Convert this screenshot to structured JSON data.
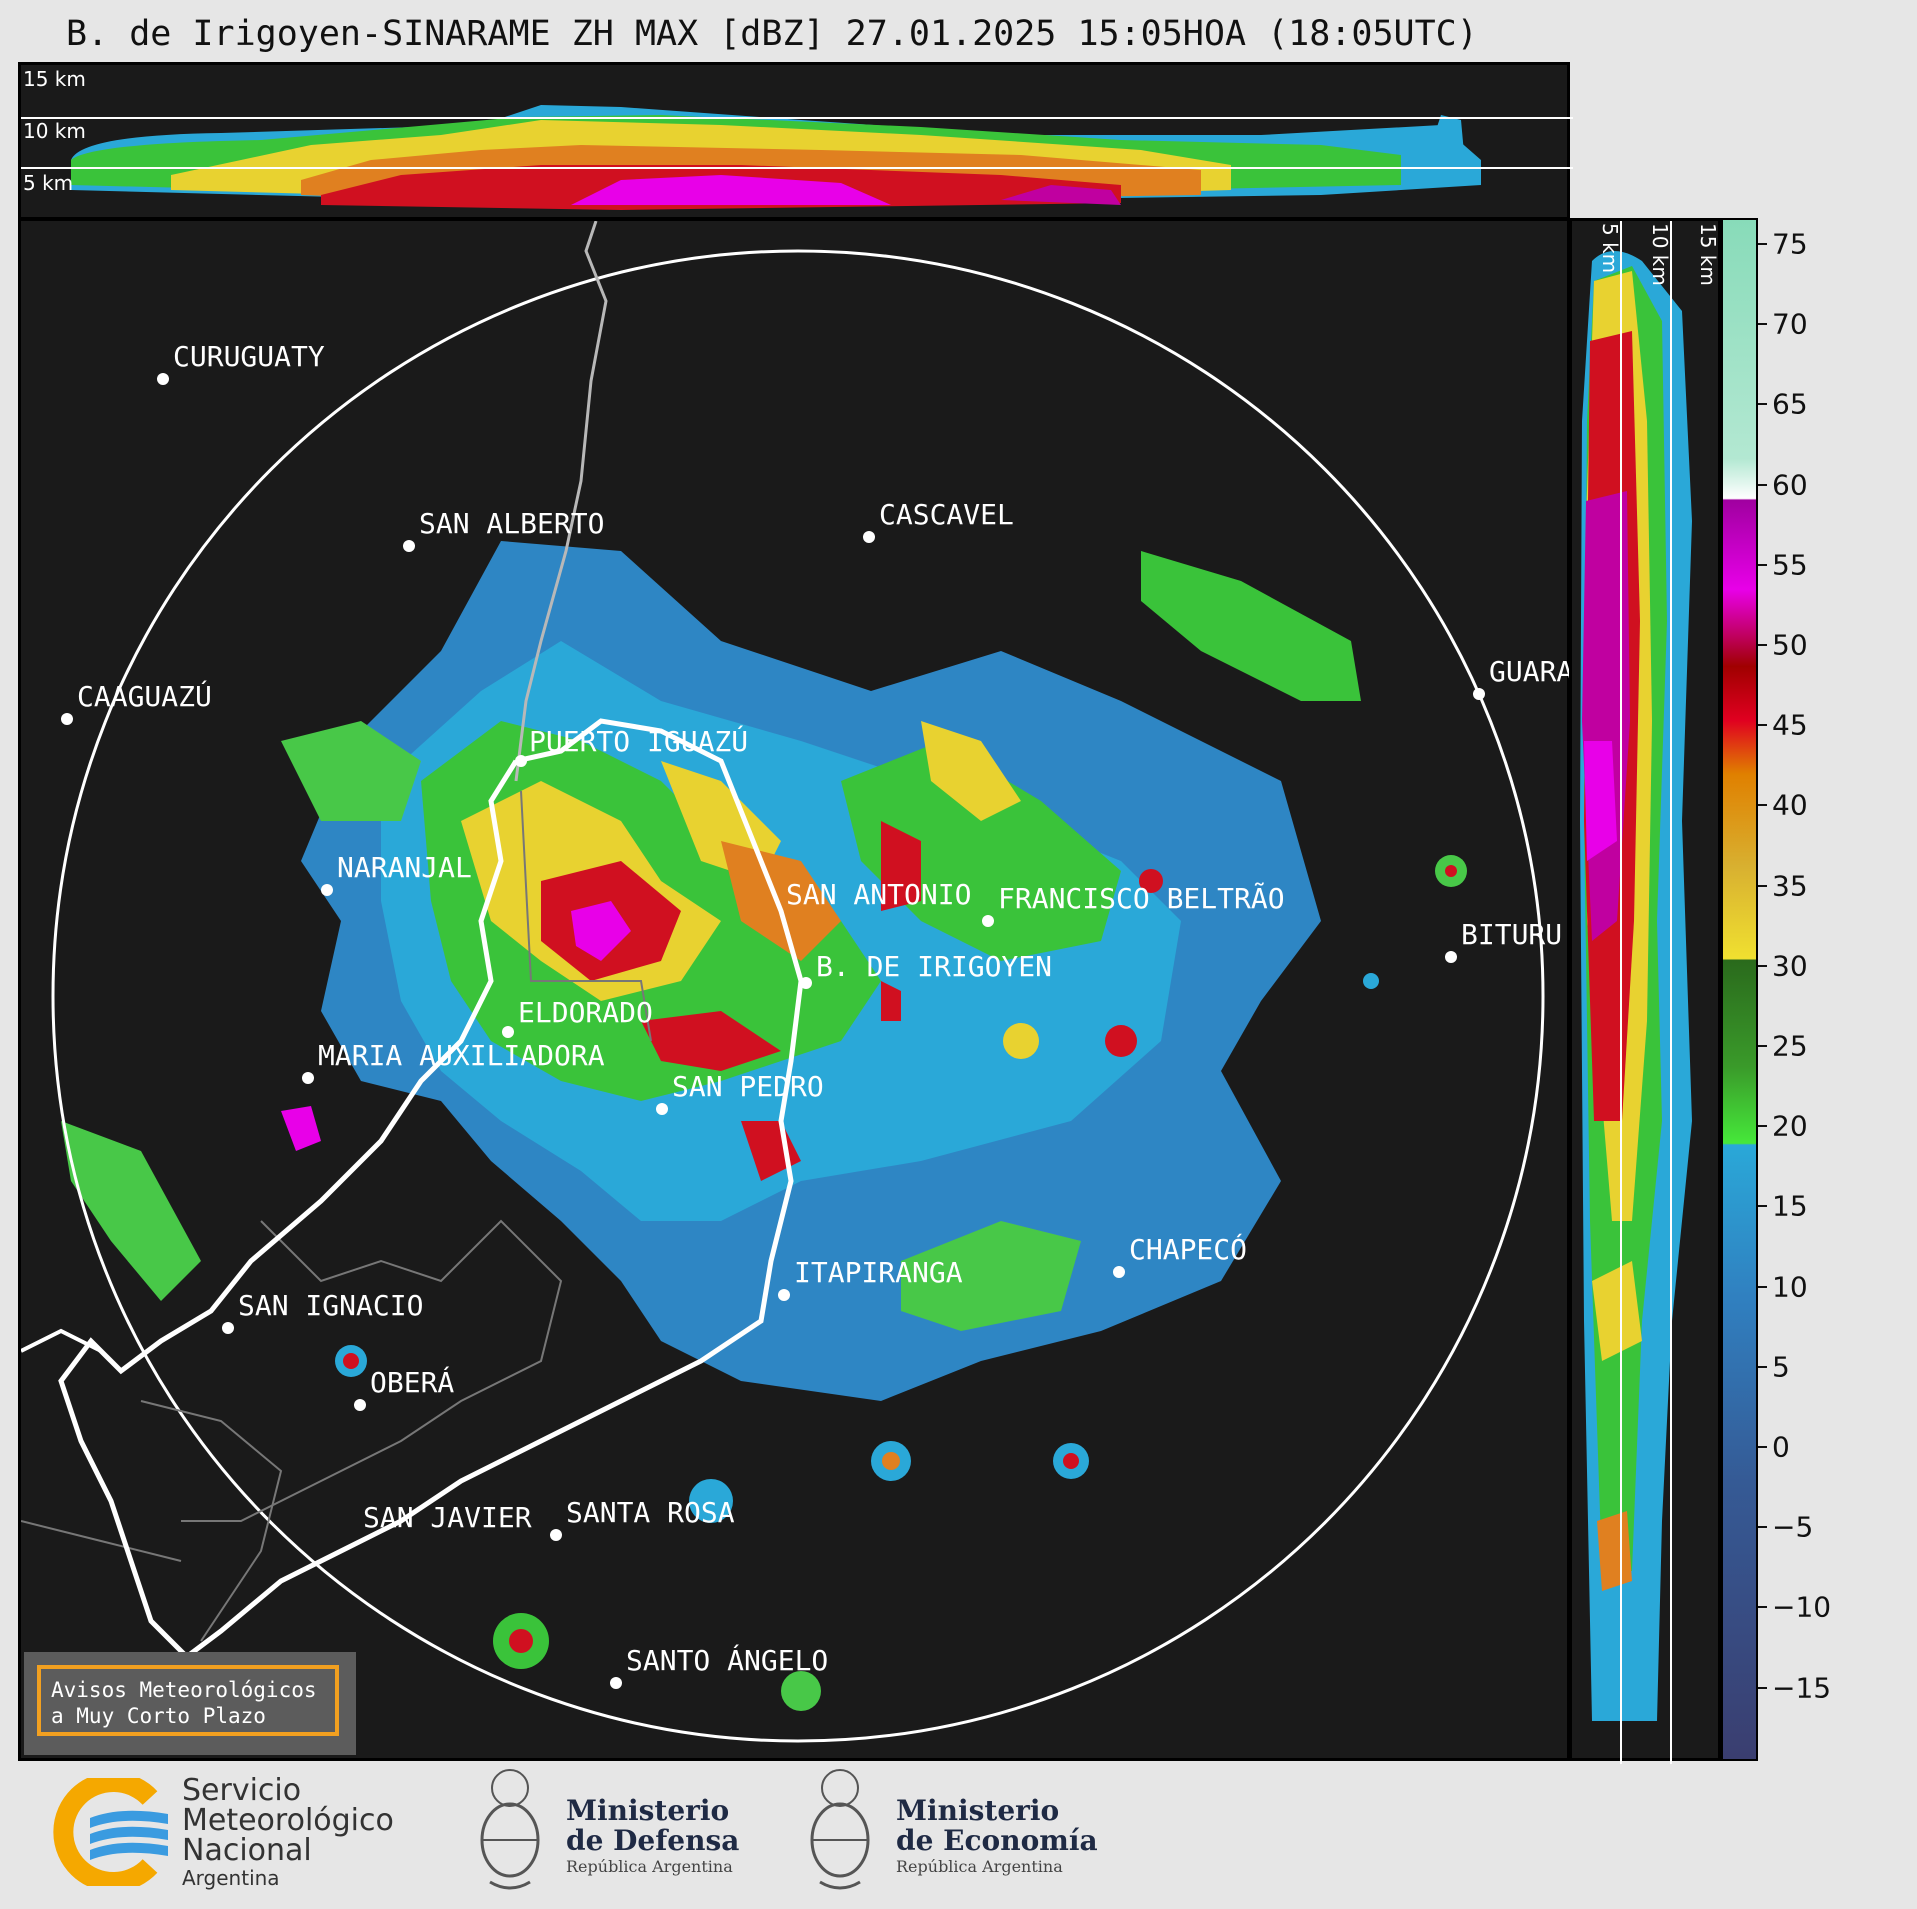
{
  "title": "B. de Irigoyen-SINARAME ZH MAX [dBZ] 27.01.2025 15:05HOA (18:05UTC)",
  "top_panel": {
    "height_labels": [
      "15 km",
      "10 km",
      "5 km"
    ]
  },
  "right_panel": {
    "height_labels": [
      "5 km",
      "10 km",
      "15 km"
    ]
  },
  "colorbar": {
    "unit": "dBZ",
    "ticks": [
      "75",
      "70",
      "65",
      "60",
      "55",
      "50",
      "45",
      "40",
      "35",
      "30",
      "25",
      "20",
      "15",
      "10",
      "5",
      "0",
      "−5",
      "−10",
      "−15"
    ]
  },
  "cities": [
    {
      "name": "CURUGUATY"
    },
    {
      "name": "SAN ALBERTO"
    },
    {
      "name": "CASCAVEL"
    },
    {
      "name": "CAAGUAZÚ"
    },
    {
      "name": "GUARA"
    },
    {
      "name": "PUERTO IGUAZÚ"
    },
    {
      "name": "NARANJAL"
    },
    {
      "name": "SAN ANTONIO"
    },
    {
      "name": "FRANCISCO BELTRÃO"
    },
    {
      "name": "B. DE IRIGOYEN"
    },
    {
      "name": "BITURU"
    },
    {
      "name": "ELDORADO"
    },
    {
      "name": "MARIA AUXILIADORA"
    },
    {
      "name": "SAN PEDRO"
    },
    {
      "name": "CHAPECÓ"
    },
    {
      "name": "ITAPIRANGA"
    },
    {
      "name": "SAN IGNACIO"
    },
    {
      "name": "OBERÁ"
    },
    {
      "name": "SAN JAVIER"
    },
    {
      "name": "SANTA ROSA"
    },
    {
      "name": "SANTO ÁNGELO"
    }
  ],
  "warning_box": {
    "line1": "Avisos Meteorológicos",
    "line2": "a Muy Corto Plazo"
  },
  "footer": {
    "smn_line1": "Servicio",
    "smn_line2": "Meteorológico",
    "smn_line3": "Nacional",
    "smn_line4": "Argentina",
    "defensa_line1": "Ministerio",
    "defensa_line2": "de Defensa",
    "defensa_line3": "República Argentina",
    "economia_line1": "Ministerio",
    "economia_line2": "de Economía",
    "economia_line3": "República Argentina"
  },
  "colors": {
    "panel_bg": "#1a1a1a",
    "page_bg": "#e6e6e6",
    "warning_border": "#f2a020",
    "smn_blue": "#3a9be0",
    "smn_orange": "#f5a800"
  }
}
